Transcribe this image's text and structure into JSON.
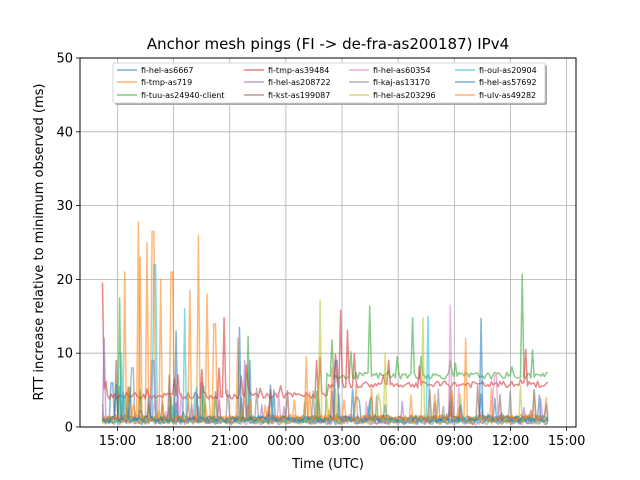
{
  "chart_data": {
    "type": "line",
    "title": "Anchor mesh pings (FI -> de-fra-as200187) IPv4",
    "xlabel": "Time (UTC)",
    "ylabel": "RTT increase relative to minimum observed (ms)",
    "ylim": [
      0,
      50
    ],
    "xlim_hours": [
      13.0,
      15.5
    ],
    "x_ticks": [
      "15:00",
      "18:00",
      "21:00",
      "00:00",
      "03:00",
      "06:00",
      "09:00",
      "12:00",
      "15:00"
    ],
    "y_ticks": [
      0,
      10,
      20,
      30,
      40,
      50
    ],
    "grid": true,
    "legend_position": "top-center",
    "series": [
      {
        "name": "fi-hel-as6667",
        "color": "#1f77b4",
        "baseline": 0.6,
        "spikes": [
          [
            14.7,
            6
          ],
          [
            19.5,
            6
          ],
          [
            22.1,
            9
          ],
          [
            3.8,
            4
          ],
          [
            8.9,
            4
          ]
        ]
      },
      {
        "name": "fi-tmp-as719",
        "color": "#ff7f0e",
        "baseline": 0.7,
        "spikes": [
          [
            15.4,
            21
          ],
          [
            16.1,
            27.8
          ],
          [
            16.6,
            25
          ],
          [
            16.9,
            26.5
          ],
          [
            17.9,
            21
          ],
          [
            19.3,
            26
          ],
          [
            20.2,
            14
          ],
          [
            21.4,
            12
          ],
          [
            2.5,
            8
          ]
        ]
      },
      {
        "name": "fi-tuu-as24940-client",
        "color": "#2ca02c",
        "baseline": 0.5,
        "step": {
          "from": 2.1,
          "value": 6.5
        },
        "spikes": [
          [
            15.1,
            17.5
          ],
          [
            22.0,
            12.3
          ],
          [
            6.8,
            14.8
          ],
          [
            12.6,
            20.7
          ],
          [
            13.9,
            20.5
          ],
          [
            4.5,
            16.4
          ]
        ]
      },
      {
        "name": "fi-tmp-as39484",
        "color": "#d62728",
        "baseline": 3.8,
        "step": {
          "from": 2.2,
          "value": 5.3
        },
        "spikes": [
          [
            14.2,
            19.6
          ],
          [
            20.7,
            14.8
          ],
          [
            2.9,
            15.8
          ],
          [
            3.3,
            13.1
          ]
        ]
      },
      {
        "name": "fi-hel-as208722",
        "color": "#9467bd",
        "baseline": 0.4,
        "spikes": [
          [
            14.3,
            12
          ],
          [
            16.9,
            9
          ],
          [
            21.8,
            9
          ]
        ]
      },
      {
        "name": "fi-kst-as199087",
        "color": "#8c564b",
        "baseline": 0.6,
        "spikes": [
          [
            14.9,
            9
          ],
          [
            17.8,
            7
          ],
          [
            23.2,
            5
          ]
        ]
      },
      {
        "name": "fi-hel-as60354",
        "color": "#e377c2",
        "baseline": 0.3,
        "spikes": [
          [
            8.8,
            16.5
          ],
          [
            11.2,
            7
          ]
        ]
      },
      {
        "name": "fi-kaj-as13170",
        "color": "#7f7f7f",
        "baseline": 0.3,
        "spikes": [
          [
            15.8,
            8
          ],
          [
            20.9,
            5
          ]
        ]
      },
      {
        "name": "fi-hel-as203296",
        "color": "#bcbd22",
        "baseline": 0.4,
        "spikes": [
          [
            1.8,
            17.2
          ],
          [
            5.3,
            10
          ],
          [
            7.3,
            14.8
          ]
        ]
      },
      {
        "name": "fi-oul-as20904",
        "color": "#17becf",
        "baseline": 0.5,
        "spikes": [
          [
            17.0,
            22
          ],
          [
            15.2,
            10
          ],
          [
            18.6,
            16
          ],
          [
            7.6,
            15
          ]
        ]
      },
      {
        "name": "fi-hel-as57692",
        "color": "#1f77b4",
        "baseline": 0.7,
        "spikes": [
          [
            18.1,
            13
          ],
          [
            21.5,
            13.5
          ],
          [
            10.4,
            14.7
          ],
          [
            2.7,
            9
          ]
        ]
      },
      {
        "name": "fi-ulv-as49282",
        "color": "#ff7f0e",
        "baseline": 0.8,
        "spikes": [
          [
            16.2,
            23
          ],
          [
            17.3,
            20
          ],
          [
            18.9,
            18.5
          ],
          [
            19.8,
            18
          ],
          [
            1.1,
            9.5
          ],
          [
            9.6,
            12
          ]
        ]
      }
    ]
  }
}
